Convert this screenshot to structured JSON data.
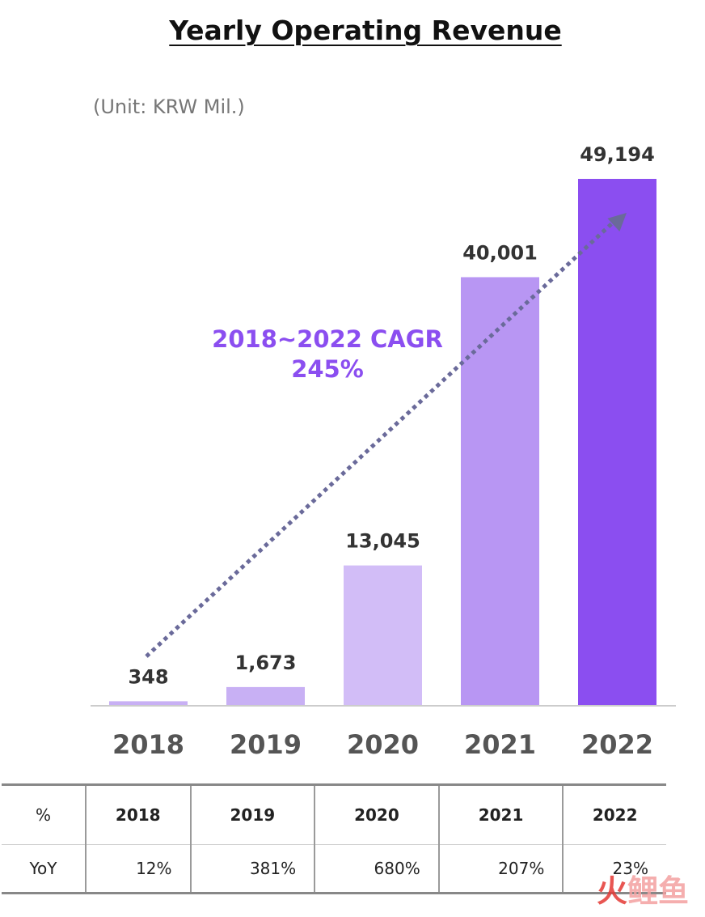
{
  "title": "Yearly Operating Revenue",
  "unit": "(Unit: KRW Mil.)",
  "colors": {
    "bars": [
      "#c8b0f4",
      "#c8b0f4",
      "#d2bdf7",
      "#b896f3",
      "#8b4ef0"
    ],
    "arrow": "#6a6a9a",
    "cagr_text": "#8b4ef0",
    "axis": "#cccccc",
    "label_text": "#333333"
  },
  "chart_data": {
    "type": "bar",
    "categories": [
      "2018",
      "2019",
      "2020",
      "2021",
      "2022"
    ],
    "values": [
      348,
      1673,
      13045,
      40001,
      49194
    ],
    "value_labels": [
      "348",
      "1,673",
      "13,045",
      "40,001",
      "49,194"
    ],
    "title": "Yearly Operating Revenue",
    "ylabel": "",
    "xlabel": "",
    "ylim": [
      0,
      49194
    ],
    "grid": false,
    "annotation": {
      "line1": "2018~2022 CAGR",
      "line2": "245%"
    }
  },
  "table": {
    "corner": "%",
    "years": [
      "2018",
      "2019",
      "2020",
      "2021",
      "2022"
    ],
    "row_label": "YoY",
    "yoy": [
      "12%",
      "381%",
      "680%",
      "207%",
      "23%"
    ]
  },
  "watermark": {
    "char1": "火",
    "char2": "鲤",
    "char3": "鱼"
  }
}
